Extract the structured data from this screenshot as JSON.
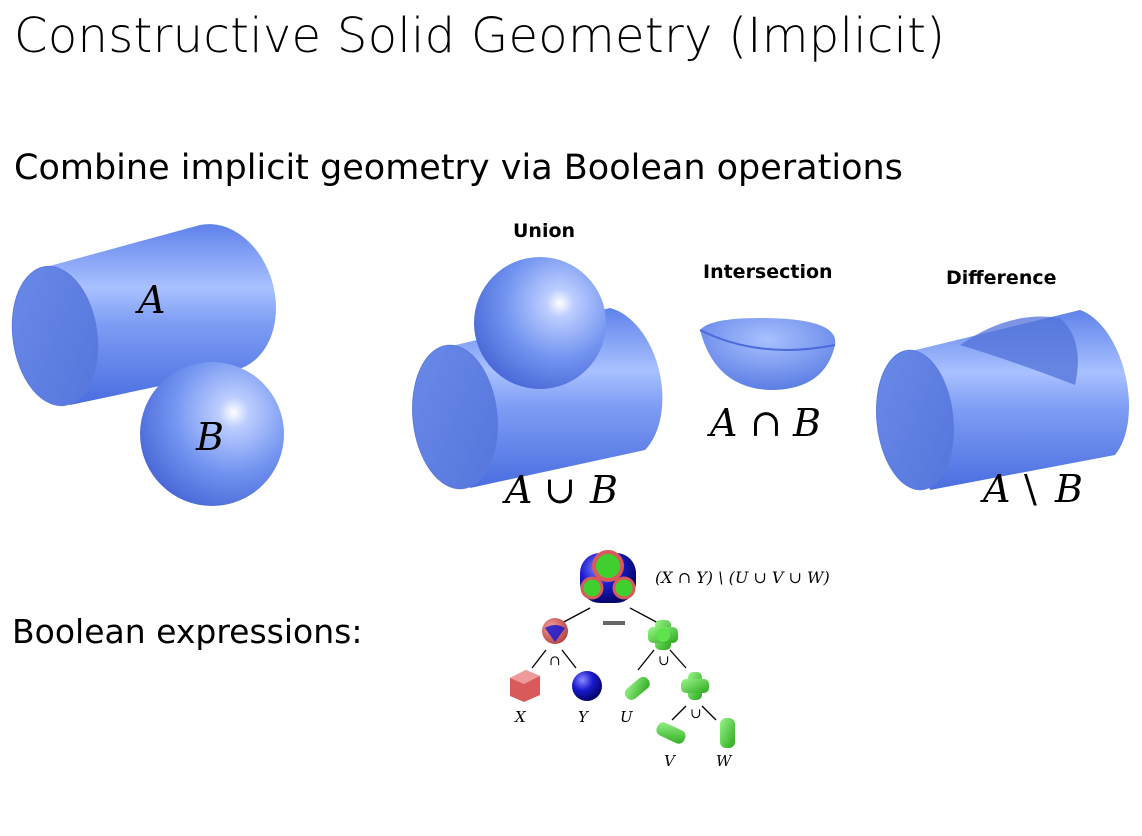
{
  "slide": {
    "title": "Constructive Solid Geometry (Implicit)",
    "subtitle": "Combine implicit geometry via Boolean operations",
    "boolean_label": "Boolean expressions:"
  },
  "shapes": {
    "a_label": "A",
    "b_label": "B"
  },
  "operations": {
    "union": {
      "title": "Union",
      "expr_left": "A",
      "op": "∪",
      "expr_right": "B"
    },
    "intersection": {
      "title": "Intersection",
      "expr_left": "A",
      "op": "∩",
      "expr_right": "B"
    },
    "difference": {
      "title": "Difference",
      "expr_left": "A",
      "op": "\\",
      "expr_right": "B"
    }
  },
  "tree": {
    "expression": "(X ∩ Y) \\ (U ∪ V ∪ W)",
    "root_op": "−",
    "left_op": "∩",
    "right_op": "∪",
    "sub_op": "∪",
    "leaves": [
      "X",
      "Y",
      "U",
      "V",
      "W"
    ]
  },
  "colors": {
    "shape_blue": "#6b8ef0",
    "red": "#d95a5a",
    "green": "#3fcf2f",
    "dark_blue": "#1a1ad0"
  }
}
